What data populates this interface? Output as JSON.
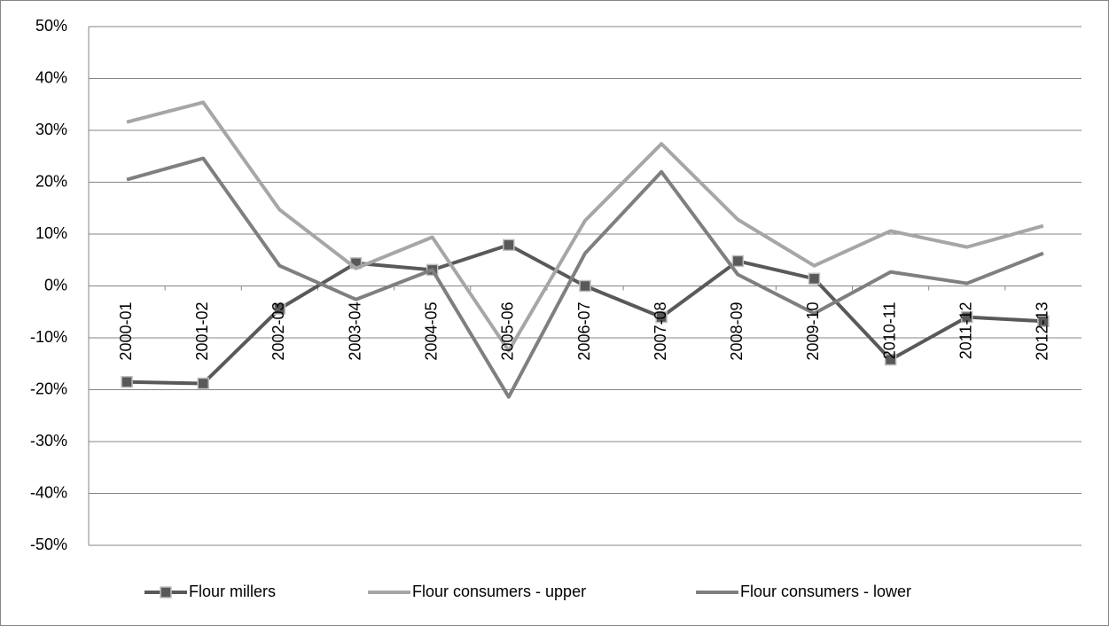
{
  "chart_data": {
    "type": "line",
    "categories": [
      "2000-01",
      "2001-02",
      "2002-03",
      "2003-04",
      "2004-05",
      "2005-06",
      "2006-07",
      "2007-08",
      "2008-09",
      "2009-10",
      "2010-11",
      "2011-12",
      "2012-13"
    ],
    "series": [
      {
        "name": "Flour millers",
        "color": "#595959",
        "marker": "square",
        "values": [
          -18.5,
          -18.8,
          -4.4,
          4.4,
          3.1,
          7.9,
          0,
          -6,
          4.8,
          1.4,
          -14.2,
          -6,
          -6.8
        ]
      },
      {
        "name": "Flour consumers - upper",
        "color": "#a6a6a6",
        "values": [
          31.6,
          35.4,
          14.7,
          3.4,
          9.4,
          -12.5,
          12.6,
          27.4,
          12.8,
          3.9,
          10.6,
          7.5,
          11.6
        ]
      },
      {
        "name": "Flour consumers - lower",
        "color": "#7f7f7f",
        "values": [
          20.5,
          24.6,
          3.9,
          -2.6,
          3.1,
          -21.4,
          6.3,
          22,
          2.2,
          -5.3,
          2.7,
          0.5,
          6.3
        ]
      }
    ],
    "ylim": [
      -50,
      50
    ],
    "yticks": [
      {
        "value": -50,
        "label": "-50%"
      },
      {
        "value": -40,
        "label": "-40%"
      },
      {
        "value": -30,
        "label": "-30%"
      },
      {
        "value": -20,
        "label": "-20%"
      },
      {
        "value": -10,
        "label": "-10%"
      },
      {
        "value": 0,
        "label": "0%"
      },
      {
        "value": 10,
        "label": "10%"
      },
      {
        "value": 20,
        "label": "20%"
      },
      {
        "value": 30,
        "label": "30%"
      },
      {
        "value": 40,
        "label": "40%"
      },
      {
        "value": 50,
        "label": "50%"
      }
    ],
    "grid": true,
    "legend": "bottom"
  }
}
